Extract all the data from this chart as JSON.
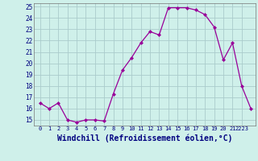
{
  "hours": [
    0,
    1,
    2,
    3,
    4,
    5,
    6,
    7,
    8,
    9,
    10,
    11,
    12,
    13,
    14,
    15,
    16,
    17,
    18,
    19,
    20,
    21,
    22,
    23
  ],
  "values": [
    16.5,
    16.0,
    16.5,
    15.0,
    14.8,
    15.0,
    15.0,
    14.9,
    17.3,
    19.4,
    20.5,
    21.8,
    22.8,
    22.5,
    24.9,
    24.9,
    24.9,
    24.7,
    24.3,
    23.2,
    20.3,
    21.8,
    18.0,
    16.0
  ],
  "line_color": "#990099",
  "marker": "D",
  "marker_size": 2,
  "bg_color": "#cff0ea",
  "grid_color": "#aacccc",
  "xlabel": "Windchill (Refroidissement éolien,°C)",
  "xlabel_color": "#000080",
  "xlabel_fontsize": 7,
  "tick_label_color": "#000080",
  "ylim": [
    14.5,
    25.3
  ],
  "yticks": [
    15,
    16,
    17,
    18,
    19,
    20,
    21,
    22,
    23,
    24,
    25
  ],
  "xtick_positions": [
    0,
    1,
    2,
    3,
    4,
    5,
    6,
    7,
    8,
    9,
    10,
    11,
    12,
    13,
    14,
    15,
    16,
    17,
    18,
    19,
    20,
    21,
    22
  ],
  "xtick_labels": [
    "0",
    "1",
    "2",
    "3",
    "4",
    "5",
    "6",
    "7",
    "8",
    "9",
    "10",
    "11",
    "12",
    "13",
    "14",
    "15",
    "16",
    "17",
    "18",
    "19",
    "20",
    "21",
    "2223"
  ]
}
